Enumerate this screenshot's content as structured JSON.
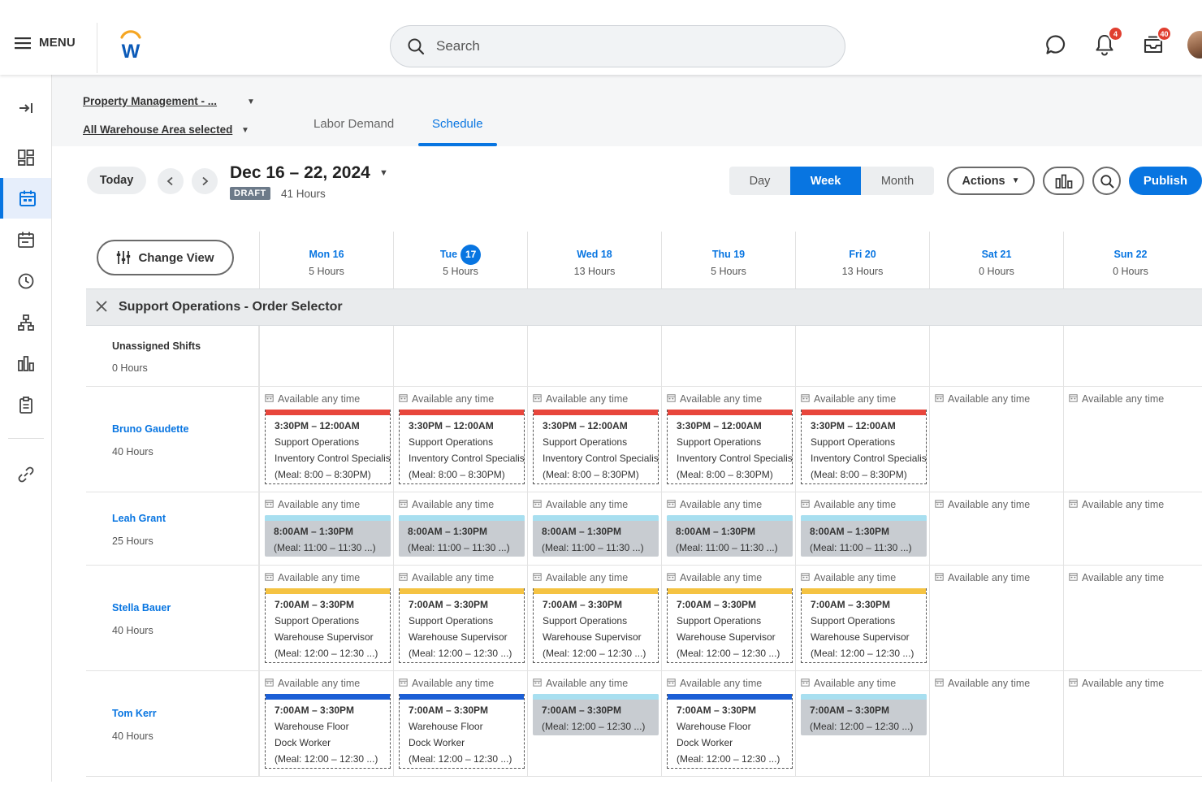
{
  "header": {
    "menu_label": "MENU",
    "logo_letter": "W",
    "search_placeholder": "Search",
    "notifications_count": "4",
    "inbox_count": "40"
  },
  "sidebar": {
    "items": [
      "collapse-panel",
      "dashboard",
      "schedule",
      "calendar",
      "time",
      "org-chart",
      "analytics",
      "clipboard",
      "link"
    ],
    "active": "schedule"
  },
  "filters": {
    "organization": "Property Management - ...",
    "area": "All Warehouse Area selected"
  },
  "tabs": [
    {
      "label": "Labor Demand",
      "active": false
    },
    {
      "label": "Schedule",
      "active": true
    }
  ],
  "toolbar": {
    "today_label": "Today",
    "date_range": "Dec 16 – 22, 2024",
    "status": "DRAFT",
    "total_hours": "41 Hours",
    "views": [
      "Day",
      "Week",
      "Month"
    ],
    "active_view": "Week",
    "actions_label": "Actions",
    "publish_label": "Publish"
  },
  "grid": {
    "change_view_label": "Change View",
    "days": [
      {
        "label": "Mon 16",
        "hours": "5 Hours",
        "today": false
      },
      {
        "label": "Tue",
        "today_number": "17",
        "hours": "5 Hours",
        "today": true
      },
      {
        "label": "Wed 18",
        "hours": "13 Hours",
        "today": false
      },
      {
        "label": "Thu 19",
        "hours": "5 Hours",
        "today": false
      },
      {
        "label": "Fri 20",
        "hours": "13 Hours",
        "today": false
      },
      {
        "label": "Sat 21",
        "hours": "0 Hours",
        "today": false
      },
      {
        "label": "Sun 22",
        "hours": "0 Hours",
        "today": false
      }
    ],
    "group_title": "Support Operations - Order Selector",
    "unassigned": {
      "label": "Unassigned Shifts",
      "hours": "0 Hours"
    },
    "availability_text": "Available any time",
    "employees": [
      {
        "name": "Bruno Gaudette",
        "hours": "40 Hours",
        "shifts": [
          {
            "style": "dashed",
            "color": "#e8463c",
            "lines": [
              "3:30PM – 12:00AM",
              "Support Operations",
              "Inventory Control Specialist",
              "(Meal: 8:00 – 8:30PM)"
            ]
          },
          {
            "style": "dashed",
            "color": "#e8463c",
            "lines": [
              "3:30PM – 12:00AM",
              "Support Operations",
              "Inventory Control Specialist",
              "(Meal: 8:00 – 8:30PM)"
            ]
          },
          {
            "style": "dashed",
            "color": "#e8463c",
            "lines": [
              "3:30PM – 12:00AM",
              "Support Operations",
              "Inventory Control Specialist",
              "(Meal: 8:00 – 8:30PM)"
            ]
          },
          {
            "style": "dashed",
            "color": "#e8463c",
            "lines": [
              "3:30PM – 12:00AM",
              "Support Operations",
              "Inventory Control Specialist",
              "(Meal: 8:00 – 8:30PM)"
            ]
          },
          {
            "style": "dashed",
            "color": "#e8463c",
            "lines": [
              "3:30PM – 12:00AM",
              "Support Operations",
              "Inventory Control Specialist",
              "(Meal: 8:00 – 8:30PM)"
            ]
          },
          null,
          null
        ]
      },
      {
        "name": "Leah Grant",
        "hours": "25 Hours",
        "shifts": [
          {
            "style": "solid",
            "color": "#a8dff0",
            "lines": [
              "8:00AM – 1:30PM",
              "(Meal: 11:00 – 11:30 ...)"
            ]
          },
          {
            "style": "solid",
            "color": "#a8dff0",
            "lines": [
              "8:00AM – 1:30PM",
              "(Meal: 11:00 – 11:30 ...)"
            ]
          },
          {
            "style": "solid",
            "color": "#a8dff0",
            "lines": [
              "8:00AM – 1:30PM",
              "(Meal: 11:00 – 11:30 ...)"
            ]
          },
          {
            "style": "solid",
            "color": "#a8dff0",
            "lines": [
              "8:00AM – 1:30PM",
              "(Meal: 11:00 – 11:30 ...)"
            ]
          },
          {
            "style": "solid",
            "color": "#a8dff0",
            "lines": [
              "8:00AM – 1:30PM",
              "(Meal: 11:00 – 11:30 ...)"
            ]
          },
          null,
          null
        ]
      },
      {
        "name": "Stella Bauer",
        "hours": "40 Hours",
        "shifts": [
          {
            "style": "dashed",
            "color": "#f5c342",
            "lines": [
              "7:00AM – 3:30PM",
              "Support Operations",
              "Warehouse Supervisor",
              "(Meal: 12:00 – 12:30 ...)"
            ]
          },
          {
            "style": "dashed",
            "color": "#f5c342",
            "lines": [
              "7:00AM – 3:30PM",
              "Support Operations",
              "Warehouse Supervisor",
              "(Meal: 12:00 – 12:30 ...)"
            ]
          },
          {
            "style": "dashed",
            "color": "#f5c342",
            "lines": [
              "7:00AM – 3:30PM",
              "Support Operations",
              "Warehouse Supervisor",
              "(Meal: 12:00 – 12:30 ...)"
            ]
          },
          {
            "style": "dashed",
            "color": "#f5c342",
            "lines": [
              "7:00AM – 3:30PM",
              "Support Operations",
              "Warehouse Supervisor",
              "(Meal: 12:00 – 12:30 ...)"
            ]
          },
          {
            "style": "dashed",
            "color": "#f5c342",
            "lines": [
              "7:00AM – 3:30PM",
              "Support Operations",
              "Warehouse Supervisor",
              "(Meal: 12:00 – 12:30 ...)"
            ]
          },
          null,
          null
        ]
      },
      {
        "name": "Tom Kerr",
        "hours": "40 Hours",
        "shifts": [
          {
            "style": "dashed",
            "color": "#1c5fd6",
            "lines": [
              "7:00AM – 3:30PM",
              "Warehouse Floor",
              "Dock Worker",
              "(Meal: 12:00 – 12:30 ...)"
            ]
          },
          {
            "style": "dashed",
            "color": "#1c5fd6",
            "lines": [
              "7:00AM – 3:30PM",
              "Warehouse Floor",
              "Dock Worker",
              "(Meal: 12:00 – 12:30 ...)"
            ]
          },
          {
            "style": "solid",
            "color": "#a8dff0",
            "lines": [
              "7:00AM – 3:30PM",
              "(Meal: 12:00 – 12:30 ...)"
            ]
          },
          {
            "style": "dashed",
            "color": "#1c5fd6",
            "lines": [
              "7:00AM – 3:30PM",
              "Warehouse Floor",
              "Dock Worker",
              "(Meal: 12:00 – 12:30 ...)"
            ]
          },
          {
            "style": "solid",
            "color": "#a8dff0",
            "lines": [
              "7:00AM – 3:30PM",
              "(Meal: 12:00 – 12:30 ...)"
            ]
          },
          null,
          null
        ]
      }
    ]
  },
  "colors": {
    "accent": "#0875e1",
    "badge": "#e03e2f"
  }
}
